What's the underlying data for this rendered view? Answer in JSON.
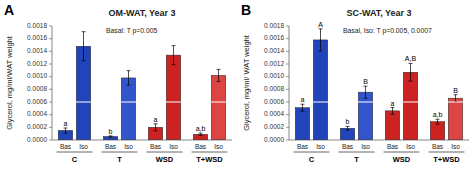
{
  "chart_data": [
    {
      "type": "bar",
      "panel_label": "A",
      "title": "OM-WAT, Year 3",
      "subtitle": "Basal: T p=0.005",
      "ylabel": "Glycerol, mg/ml/WAT weight",
      "categories": [
        "C",
        "T",
        "WSD",
        "T+WSD"
      ],
      "series": [
        {
          "name": "Bas",
          "colors": [
            "#2244bb",
            "#2244bb",
            "#cc2222",
            "#cc2222"
          ],
          "values": [
            0.00015,
            5.5e-05,
            0.0002,
            9e-05
          ],
          "errors": [
            4e-05,
            1e-05,
            5.5e-05,
            1.8e-05
          ],
          "annotations": [
            "a",
            "b",
            "a",
            "a,b"
          ]
        },
        {
          "name": "Iso",
          "colors": [
            "#2244bb",
            "#3355cc",
            "#cc2222",
            "#dd4444"
          ],
          "values": [
            0.00148,
            0.00098,
            0.00134,
            0.00102
          ],
          "errors": [
            0.00023,
            0.000115,
            0.00015,
            9.5e-05
          ]
        }
      ],
      "ylim": [
        0,
        0.0018
      ],
      "yticks": [
        {
          "value": 0.0,
          "label": "0.0000"
        },
        {
          "value": 0.0002,
          "label": "0.0002"
        },
        {
          "value": 0.0004,
          "label": "0.0004"
        },
        {
          "value": 0.0006,
          "label": "0.0006"
        },
        {
          "value": 0.0008,
          "label": "0.0008"
        },
        {
          "value": 0.001,
          "label": "0.0010"
        },
        {
          "value": 0.0012,
          "label": "0.0012"
        },
        {
          "value": 0.0014,
          "label": "0.0014"
        },
        {
          "value": 0.0016,
          "label": "0.0016"
        },
        {
          "value": 0.0018,
          "label": "0.0018"
        }
      ],
      "reference_line": 0.0006,
      "grid": false
    },
    {
      "type": "bar",
      "panel_label": "B",
      "title": "SC-WAT, Year 3",
      "subtitle": "Basal, Iso: T p=0.005, 0.0007",
      "ylabel": "Glycerol, mg/ml/ WAT weight",
      "categories": [
        "C",
        "T",
        "WSD",
        "T+WSD"
      ],
      "series": [
        {
          "name": "Bas",
          "colors": [
            "#2244bb",
            "#2244bb",
            "#cc2222",
            "#cc2222"
          ],
          "values": [
            0.00051,
            0.000185,
            0.00046,
            0.00029
          ],
          "errors": [
            5.5e-05,
            3e-05,
            5.2e-05,
            3.8e-05
          ],
          "annotations": [
            "a",
            "b",
            "a",
            "a,b"
          ]
        },
        {
          "name": "Iso",
          "colors": [
            "#2244bb",
            "#3355cc",
            "#cc2222",
            "#dd4444"
          ],
          "values": [
            0.00158,
            0.000755,
            0.00107,
            0.00066
          ],
          "errors": [
            0.000175,
            9.5e-05,
            0.00014,
            5.5e-05
          ],
          "annotations": [
            "A",
            "B",
            "A,B",
            "B"
          ]
        }
      ],
      "ylim": [
        0,
        0.0018
      ],
      "yticks": [
        {
          "value": 0.0,
          "label": "0.0000"
        },
        {
          "value": 0.0002,
          "label": "0.0002"
        },
        {
          "value": 0.0004,
          "label": "0.0004"
        },
        {
          "value": 0.0006,
          "label": "0.0006"
        },
        {
          "value": 0.0008,
          "label": "0.0008"
        },
        {
          "value": 0.001,
          "label": "0.0010"
        },
        {
          "value": 0.0012,
          "label": "0.0012"
        },
        {
          "value": 0.0014,
          "label": "0.0014"
        },
        {
          "value": 0.0016,
          "label": "0.0016"
        },
        {
          "value": 0.0018,
          "label": "0.0018"
        }
      ],
      "reference_line": 0.0006,
      "grid": false
    }
  ]
}
